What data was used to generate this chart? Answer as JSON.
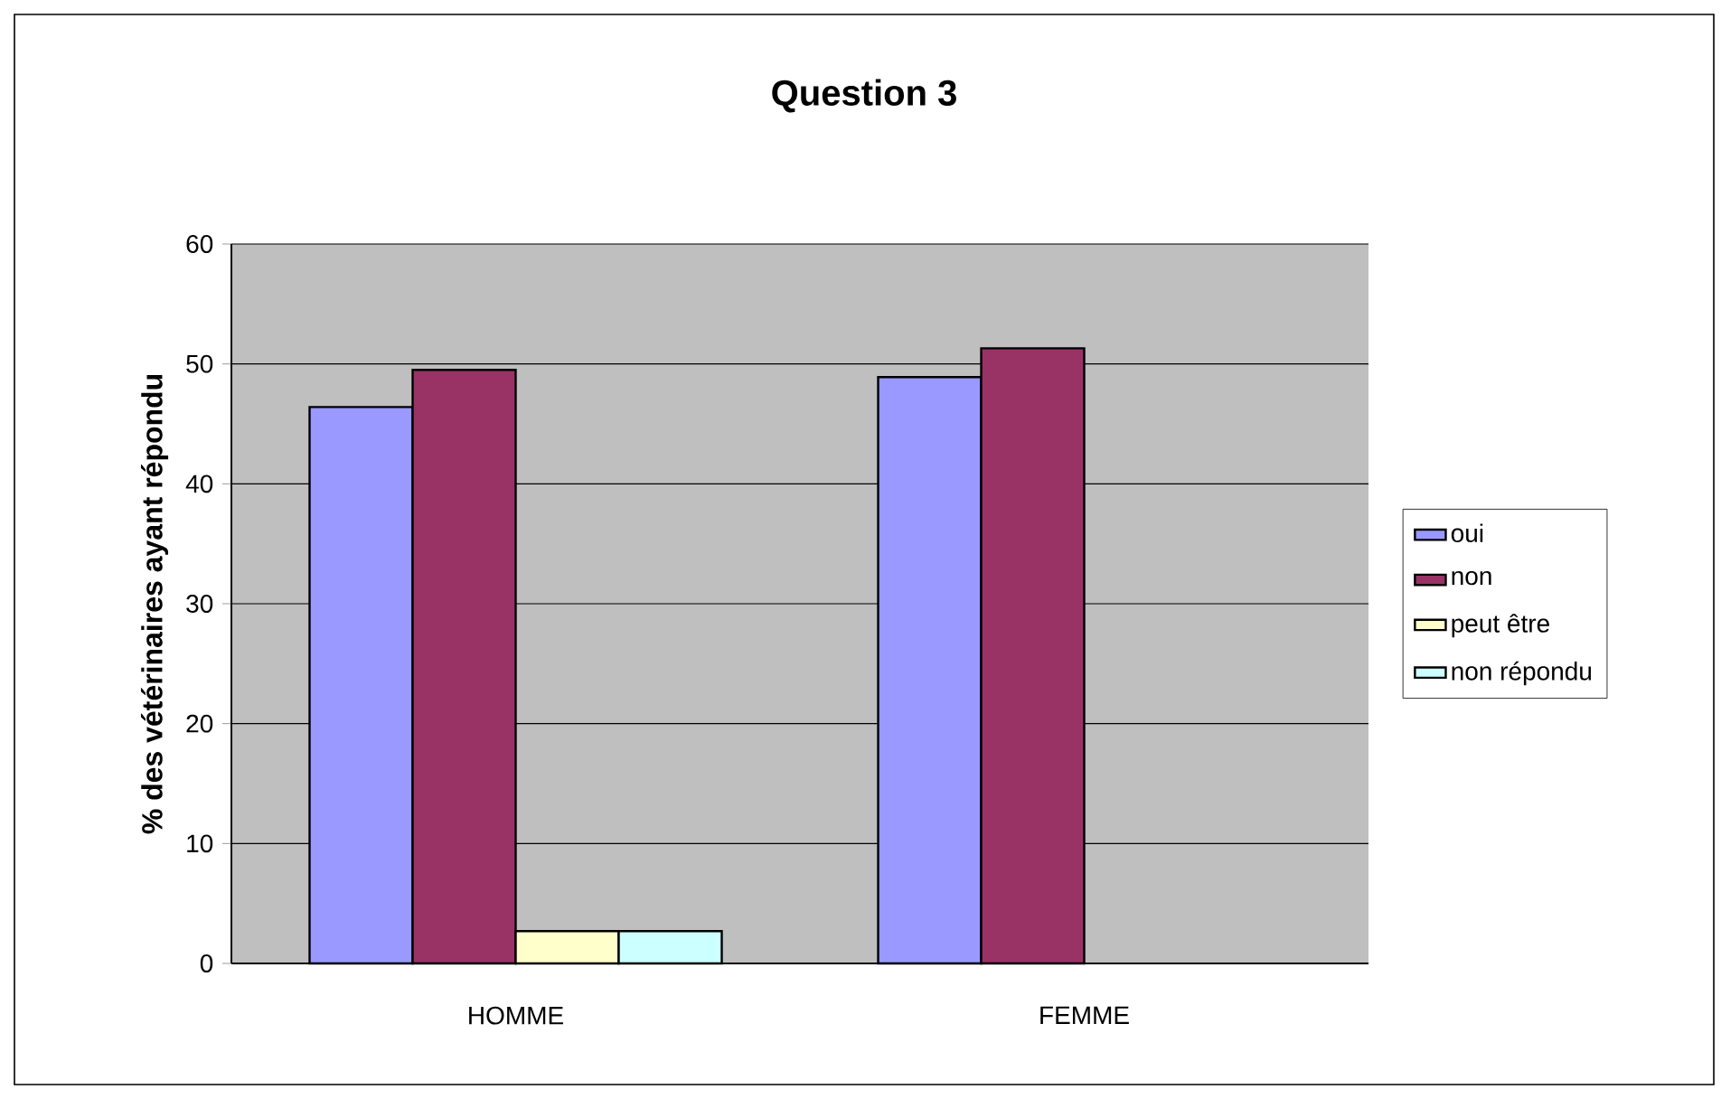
{
  "chart_data": {
    "type": "bar",
    "title": "Question 3",
    "ylabel": "% des vétérinaires ayant répondu",
    "categories": [
      "HOMME",
      "FEMME"
    ],
    "series": [
      {
        "name": "oui",
        "color": "#9999ff",
        "values": [
          46.4,
          48.9
        ]
      },
      {
        "name": "non",
        "color": "#993366",
        "values": [
          49.5,
          51.3
        ]
      },
      {
        "name": "peut être",
        "color": "#ffffcc",
        "values": [
          2.7,
          null
        ]
      },
      {
        "name": "non répondu",
        "color": "#ccffff",
        "values": [
          2.7,
          null
        ]
      }
    ],
    "ylim": [
      0,
      60
    ],
    "yticks": [
      0,
      10,
      20,
      30,
      40,
      50,
      60
    ],
    "grid": "y",
    "legend": "right"
  }
}
